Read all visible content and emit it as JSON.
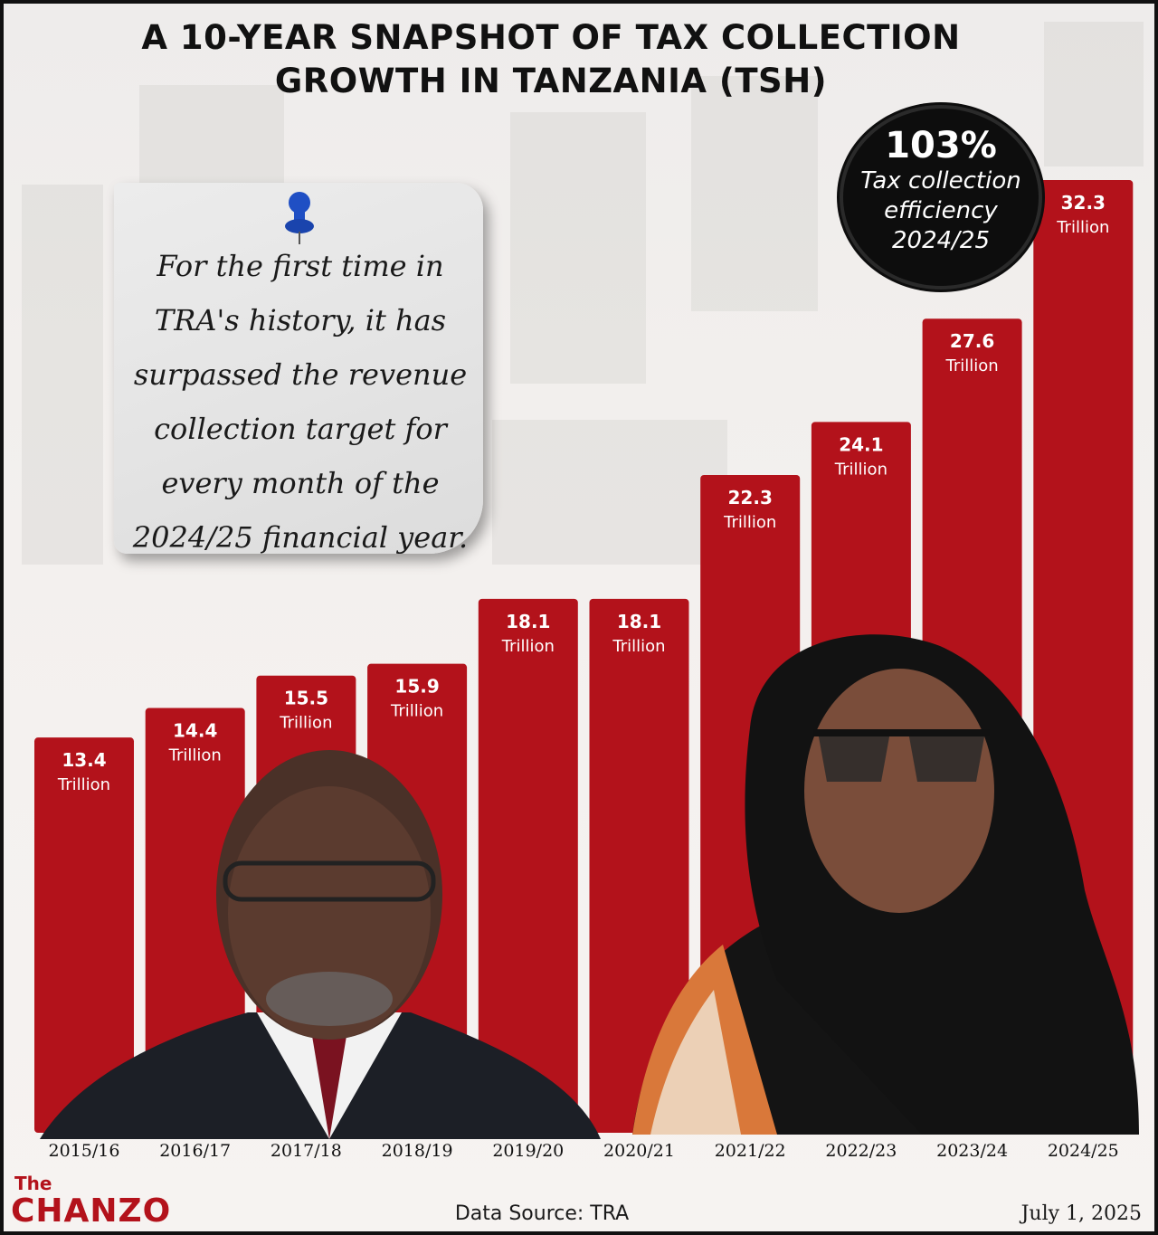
{
  "title": {
    "line1": "A 10-YEAR SNAPSHOT OF TAX COLLECTION",
    "line2": "GROWTH IN TANZANIA (TSH)"
  },
  "note": {
    "text": "For the first time in TRA's history, it has surpassed the revenue collection target for every month of the 2024/25 financial year."
  },
  "badge": {
    "percent": "103%",
    "line1": "Tax collection",
    "line2": "efficiency",
    "line3": "2024/25"
  },
  "footer": {
    "logo_the": "The",
    "logo_main": "CHANZO",
    "source": "Data Source: TRA",
    "date": "July 1, 2025"
  },
  "colors": {
    "bar": "#b3121b",
    "bar_dark": "#9c1118",
    "label_text": "#ffffff",
    "accent": "#b3121b"
  },
  "chart_data": {
    "type": "bar",
    "categories": [
      "2015/16",
      "2016/17",
      "2017/18",
      "2018/19",
      "2019/20",
      "2020/21",
      "2021/22",
      "2022/23",
      "2023/24",
      "2024/25"
    ],
    "values": [
      13.4,
      14.4,
      15.5,
      15.9,
      18.1,
      18.1,
      22.3,
      24.1,
      27.6,
      32.3
    ],
    "value_labels": [
      "13.4",
      "14.4",
      "15.5",
      "15.9",
      "18.1",
      "18.1",
      "22.3",
      "24.1",
      "27.6",
      "32.3"
    ],
    "unit_label": "Trillion",
    "title": "A 10-YEAR SNAPSHOT OF TAX COLLECTION GROWTH IN TANZANIA (TSH)",
    "xlabel": "",
    "ylabel": "",
    "ylim": [
      0,
      32.3
    ],
    "grid": false,
    "legend": "none"
  }
}
